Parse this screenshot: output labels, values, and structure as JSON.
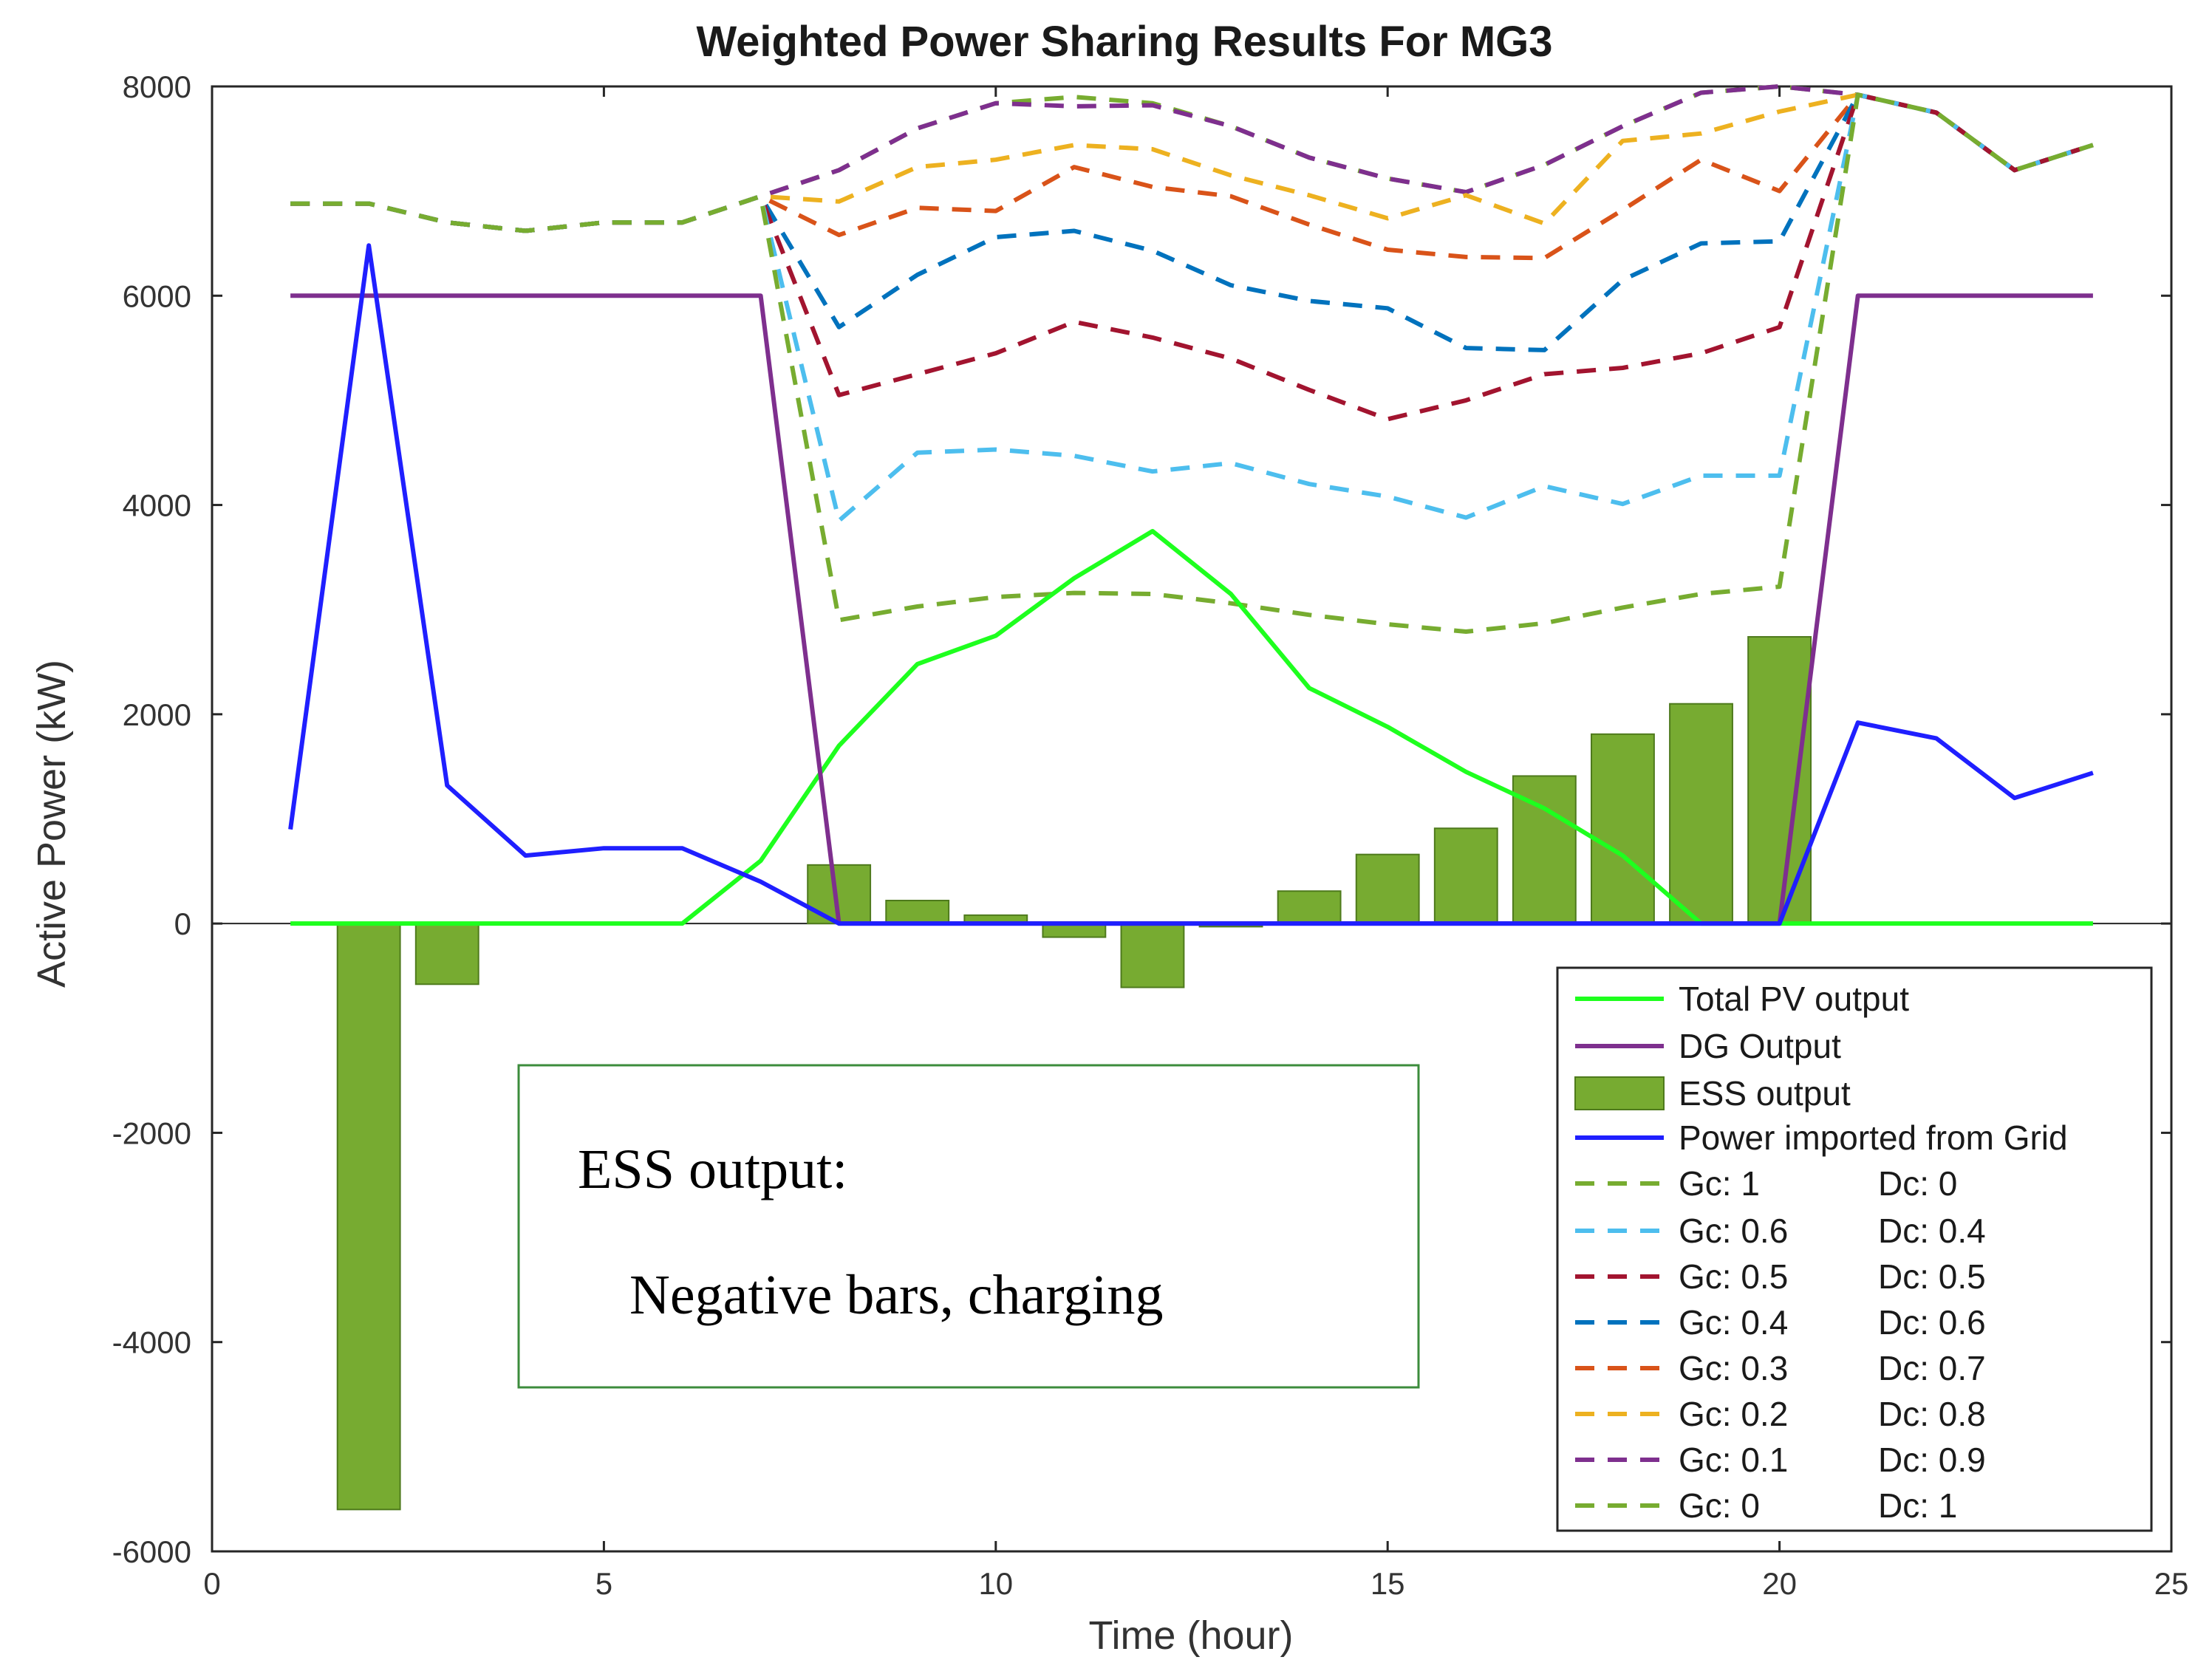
{
  "chart_data": {
    "type": "bar+line",
    "title": "Weighted Power Sharing Results For MG3",
    "xlabel": "Time (hour)",
    "ylabel": "Active Power (kW)",
    "xlim": [
      0,
      25
    ],
    "ylim": [
      -6000,
      8000
    ],
    "xticks": [
      0,
      5,
      10,
      15,
      20,
      25
    ],
    "yticks": [
      -6000,
      -4000,
      -2000,
      0,
      2000,
      4000,
      6000,
      8000
    ],
    "grid": false,
    "legend_position": "bottom-right",
    "x": [
      1,
      2,
      3,
      4,
      5,
      6,
      7,
      8,
      9,
      10,
      11,
      12,
      13,
      14,
      15,
      16,
      17,
      18,
      19,
      20,
      21,
      22,
      23,
      24
    ],
    "bars": {
      "name": "ESS output",
      "color": "#77ab31",
      "values": [
        0,
        -5600,
        -580,
        0,
        0,
        0,
        0,
        560,
        220,
        80,
        -130,
        -610,
        -30,
        310,
        660,
        910,
        1410,
        1810,
        2100,
        2740,
        0,
        0,
        0,
        0
      ]
    },
    "series": [
      {
        "name": "Total PV output",
        "style": "solid",
        "color": "#1eff1e",
        "values": [
          0,
          0,
          0,
          0,
          0,
          0,
          600,
          1700,
          2480,
          2750,
          3300,
          3750,
          3150,
          2250,
          1880,
          1450,
          1100,
          650,
          0,
          0,
          0,
          0,
          0,
          0
        ]
      },
      {
        "name": "DG Output",
        "style": "solid",
        "color": "#7e2f8e",
        "values": [
          6000,
          6000,
          6000,
          6000,
          6000,
          6000,
          6000,
          0,
          0,
          0,
          0,
          0,
          0,
          0,
          0,
          0,
          0,
          0,
          0,
          0,
          6000,
          6000,
          6000,
          6000
        ]
      },
      {
        "name": "Power imported from Grid",
        "style": "solid",
        "color": "#1f1fff",
        "values": [
          900,
          6480,
          1320,
          650,
          720,
          720,
          400,
          0,
          0,
          0,
          0,
          0,
          0,
          0,
          0,
          0,
          0,
          0,
          0,
          0,
          1920,
          1770,
          1200,
          1440
        ]
      },
      {
        "name": "Gc: 1     Dc: 0",
        "gc": "Gc: 1",
        "dc": "Dc: 0",
        "style": "dashed",
        "color": "#77ac30",
        "values": [
          6880,
          6880,
          6700,
          6620,
          6700,
          6700,
          6950,
          2900,
          3030,
          3120,
          3160,
          3150,
          3060,
          2950,
          2860,
          2790,
          2870,
          3020,
          3150,
          3220,
          7920,
          7750,
          7200,
          7440
        ]
      },
      {
        "name": "Gc: 0.6     Dc: 0.4",
        "gc": "Gc: 0.6",
        "dc": "Dc: 0.4",
        "style": "dashed",
        "color": "#4dbeee",
        "values": [
          6880,
          6880,
          6700,
          6620,
          6700,
          6700,
          6950,
          3850,
          4500,
          4530,
          4470,
          4320,
          4400,
          4200,
          4080,
          3880,
          4180,
          4010,
          4280,
          4280,
          7920,
          7750,
          7200,
          7440
        ]
      },
      {
        "name": "Gc: 0.5     Dc: 0.5",
        "gc": "Gc: 0.5",
        "dc": "Dc: 0.5",
        "style": "dashed",
        "color": "#a2142f",
        "values": [
          6880,
          6880,
          6700,
          6620,
          6700,
          6700,
          6950,
          5050,
          5250,
          5450,
          5750,
          5600,
          5400,
          5100,
          4820,
          5000,
          5250,
          5310,
          5450,
          5700,
          7920,
          7750,
          7200,
          7440
        ]
      },
      {
        "name": "Gc: 0.4     Dc: 0.6",
        "gc": "Gc: 0.4",
        "dc": "Dc: 0.6",
        "style": "dashed",
        "color": "#0072bd",
        "values": [
          6880,
          6880,
          6700,
          6620,
          6700,
          6700,
          6950,
          5700,
          6200,
          6560,
          6620,
          6430,
          6100,
          5950,
          5880,
          5500,
          5480,
          6150,
          6500,
          6520,
          7920,
          7750,
          7200,
          7440
        ]
      },
      {
        "name": "Gc: 0.3     Dc: 0.7",
        "gc": "Gc: 0.3",
        "dc": "Dc: 0.7",
        "style": "dashed",
        "color": "#d95319",
        "values": [
          6880,
          6880,
          6700,
          6620,
          6700,
          6700,
          6950,
          6580,
          6840,
          6810,
          7230,
          7040,
          6950,
          6680,
          6440,
          6370,
          6360,
          6820,
          7300,
          7000,
          7920,
          7750,
          7200,
          7440
        ]
      },
      {
        "name": "Gc: 0.2     Dc: 0.8",
        "gc": "Gc: 0.2",
        "dc": "Dc: 0.8",
        "style": "dashed",
        "color": "#edb120",
        "values": [
          6880,
          6880,
          6700,
          6620,
          6700,
          6700,
          6950,
          6900,
          7230,
          7300,
          7440,
          7400,
          7150,
          6960,
          6740,
          6960,
          6690,
          7480,
          7550,
          7760,
          7920,
          7750,
          7200,
          7440
        ]
      },
      {
        "name": "Gc: 0.1     Dc: 0.9",
        "gc": "Gc: 0.1",
        "dc": "Dc: 0.9",
        "style": "dashed",
        "color": "#7e2f8e",
        "values": [
          6880,
          6880,
          6700,
          6620,
          6700,
          6700,
          6950,
          7200,
          7600,
          7840,
          7810,
          7820,
          7620,
          7320,
          7120,
          6990,
          7250,
          7620,
          7940,
          8000,
          7920,
          7750,
          7200,
          7440
        ]
      },
      {
        "name": "Gc: 0     Dc: 1",
        "gc": "Gc: 0",
        "dc": "Dc: 1",
        "style": "dashed",
        "color": "#77ac30",
        "values": [
          6880,
          6880,
          6700,
          6620,
          6700,
          6700,
          6950,
          7200,
          7600,
          7840,
          7900,
          7840,
          7620,
          7320,
          7120,
          6990,
          7250,
          7620,
          7940,
          8000,
          7920,
          7750,
          7200,
          7440
        ]
      }
    ],
    "annotation": {
      "heading": "ESS output:",
      "body": "Negative bars, charging",
      "border_color": "#3c8c3c"
    }
  }
}
